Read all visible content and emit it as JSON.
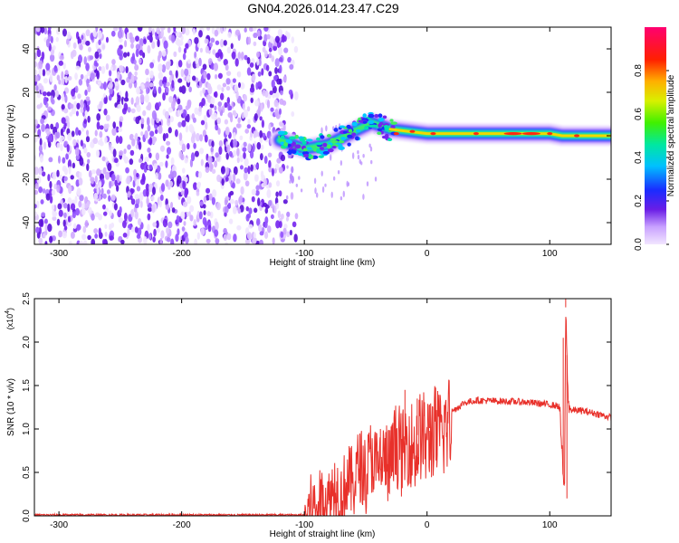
{
  "title": "GN04.2026.014.23.47.C29",
  "chart_data": [
    {
      "type": "heatmap",
      "title": "GN04.2026.014.23.47.C29",
      "xlabel": "Height of straight line (km)",
      "ylabel": "Frequency (Hz)",
      "xlim": [
        -320,
        150
      ],
      "ylim": [
        -50,
        50
      ],
      "x_ticks": [
        -300,
        -200,
        -100,
        0,
        100
      ],
      "y_ticks": [
        -40,
        -20,
        0,
        20,
        40
      ],
      "x_tick_labels": [
        "-300",
        "-200",
        "-100",
        "0",
        "100"
      ],
      "y_tick_labels": [
        "-40",
        "-20",
        "0",
        "20",
        "40"
      ],
      "noise_region_x": [
        -320,
        -115
      ],
      "signal_track": [
        {
          "x": -120,
          "y": -2
        },
        {
          "x": -100,
          "y": -6
        },
        {
          "x": -80,
          "y": -4
        },
        {
          "x": -60,
          "y": 2
        },
        {
          "x": -45,
          "y": 6
        },
        {
          "x": -30,
          "y": 3
        },
        {
          "x": -15,
          "y": 2
        },
        {
          "x": 0,
          "y": 1
        },
        {
          "x": 20,
          "y": 1
        },
        {
          "x": 50,
          "y": 1
        },
        {
          "x": 80,
          "y": 1
        },
        {
          "x": 100,
          "y": 1
        },
        {
          "x": 110,
          "y": 0
        },
        {
          "x": 150,
          "y": 0
        }
      ],
      "colorbar": {
        "label": "Normalized spectral amplitude",
        "range": [
          0,
          1
        ],
        "ticks": [
          0.0,
          0.2,
          0.4,
          0.6,
          0.8
        ],
        "tick_labels": [
          "0.0",
          "0.2",
          "0.4",
          "0.6",
          "0.8"
        ]
      }
    },
    {
      "type": "line",
      "xlabel": "Height of straight line (km)",
      "ylabel": "SNR (10 * v/v)",
      "y_scale_label": "(x10",
      "y_scale_exp": "4",
      "xlim": [
        -320,
        150
      ],
      "ylim": [
        0,
        2.5
      ],
      "x_ticks": [
        -300,
        -200,
        -100,
        0,
        100
      ],
      "y_ticks": [
        0.0,
        0.5,
        1.0,
        1.5,
        2.0,
        2.5
      ],
      "x_tick_labels": [
        "-300",
        "-200",
        "-100",
        "0",
        "100"
      ],
      "y_tick_labels": [
        "0.0",
        "0.5",
        "1.0",
        "1.5",
        "2.0",
        "2.5"
      ],
      "line_color": "#e8302a",
      "series": [
        {
          "name": "SNR",
          "points": [
            [
              -320,
              0.01
            ],
            [
              -100,
              0.01
            ],
            [
              -95,
              0.2
            ],
            [
              -90,
              0.15
            ],
            [
              -85,
              0.3
            ],
            [
              -80,
              0.25
            ],
            [
              -75,
              0.45
            ],
            [
              -70,
              0.3
            ],
            [
              -65,
              0.5
            ],
            [
              -60,
              0.45
            ],
            [
              -55,
              0.7
            ],
            [
              -50,
              0.55
            ],
            [
              -45,
              0.8
            ],
            [
              -40,
              0.6
            ],
            [
              -35,
              0.75
            ],
            [
              -30,
              0.65
            ],
            [
              -25,
              0.95
            ],
            [
              -20,
              0.8
            ],
            [
              -15,
              1.0
            ],
            [
              -10,
              0.85
            ],
            [
              -5,
              1.05
            ],
            [
              0,
              0.95
            ],
            [
              5,
              1.1
            ],
            [
              10,
              1.0
            ],
            [
              15,
              1.15
            ],
            [
              20,
              1.2
            ],
            [
              30,
              1.3
            ],
            [
              40,
              1.33
            ],
            [
              60,
              1.32
            ],
            [
              80,
              1.31
            ],
            [
              100,
              1.28
            ],
            [
              108,
              1.26
            ],
            [
              112,
              0.2
            ],
            [
              113,
              2.4
            ],
            [
              115,
              1.3
            ],
            [
              118,
              1.2
            ],
            [
              120,
              1.22
            ],
            [
              130,
              1.2
            ],
            [
              140,
              1.17
            ],
            [
              150,
              1.13
            ]
          ],
          "spikes": [
            {
              "x": -38,
              "y": 1.0
            },
            {
              "x": -18,
              "y": 1.45
            },
            {
              "x": -8,
              "y": 1.35
            },
            {
              "x": 2,
              "y": 1.28
            },
            {
              "x": 111,
              "y": 2.05
            },
            {
              "x": 113,
              "y": 2.55
            },
            {
              "x": 114,
              "y": 0.2
            }
          ]
        }
      ]
    }
  ]
}
